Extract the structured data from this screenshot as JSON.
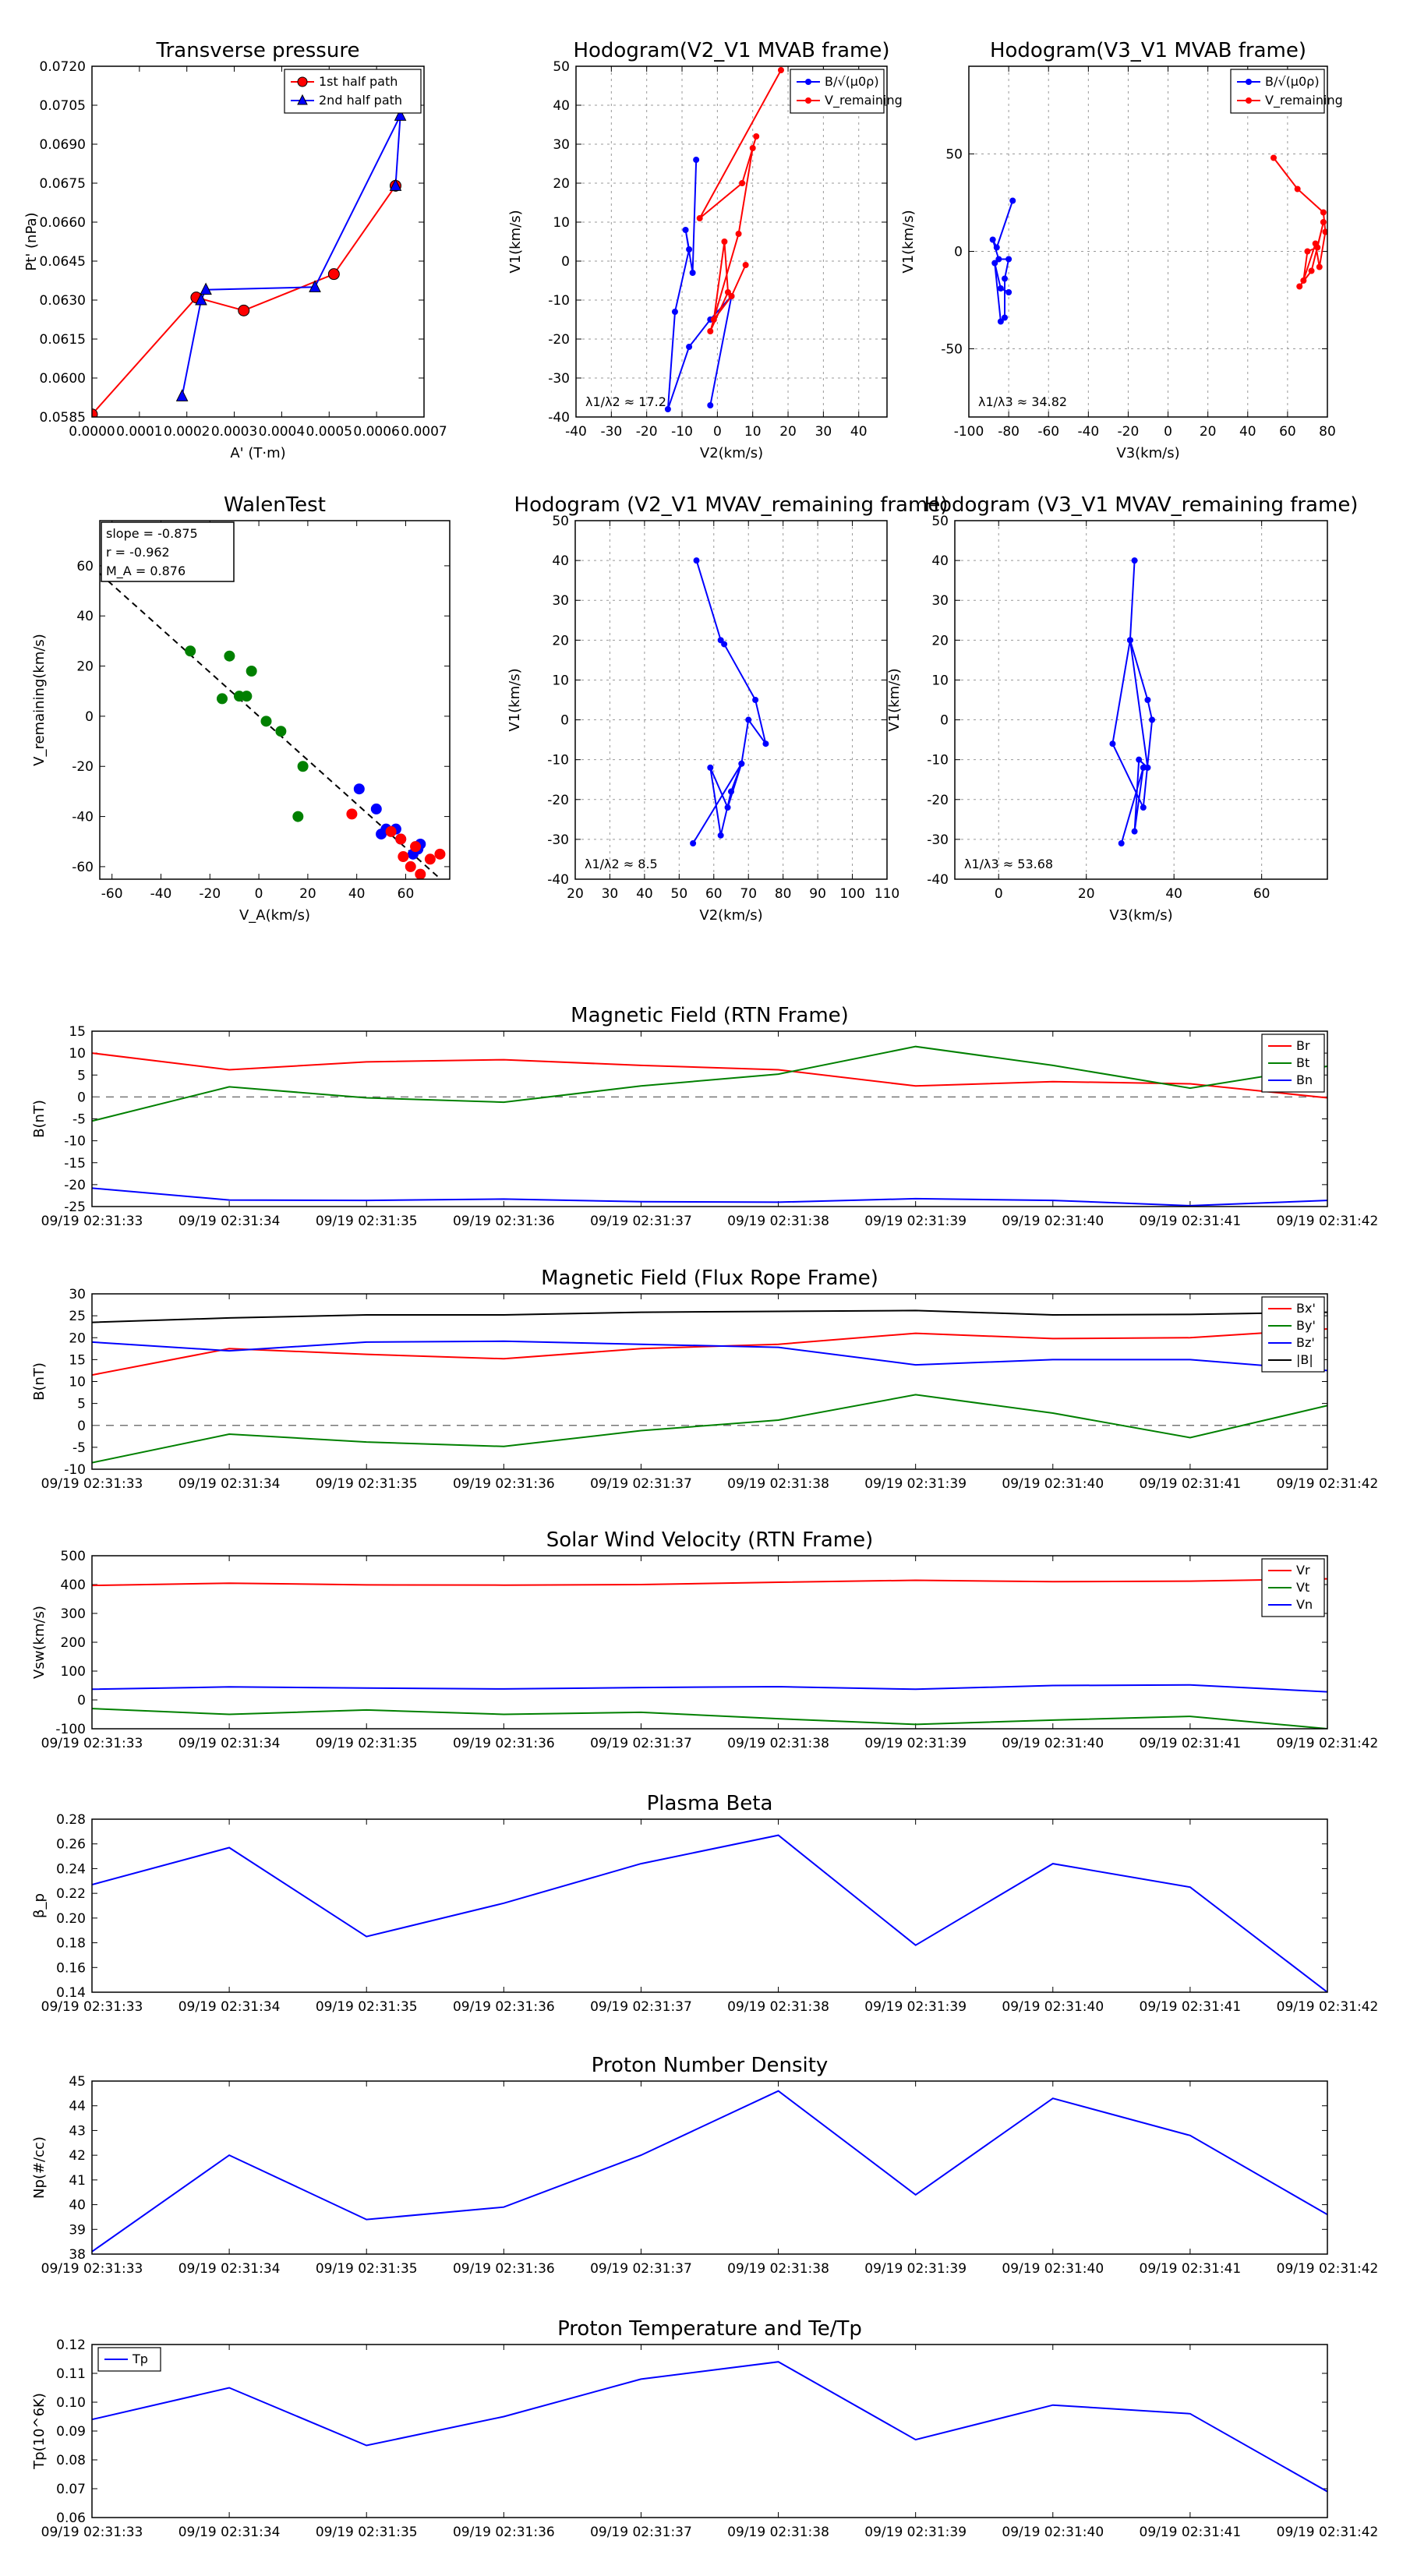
{
  "chart_data": [
    {
      "id": "tp",
      "type": "line",
      "title": "Transverse pressure",
      "xlabel": "A' (T·m)",
      "ylabel": "Pt' (nPa)",
      "xlim": [
        0,
        0.0007
      ],
      "ylim": [
        0.0585,
        0.072
      ],
      "xticks": [
        0,
        0.0001,
        0.0002,
        0.0003,
        0.0004,
        0.0005,
        0.0006,
        0.0007
      ],
      "xtick_labels": [
        "0.0000",
        "0.0001",
        "0.0002",
        "0.0003",
        "0.0004",
        "0.0005",
        "0.0006",
        "0.0007"
      ],
      "yticks": [
        0.0585,
        0.06,
        0.0615,
        0.063,
        0.0645,
        0.066,
        0.0675,
        0.069,
        0.0705,
        0.072
      ],
      "ytick_labels": [
        "0.0585",
        "0.0600",
        "0.0615",
        "0.0630",
        "0.0645",
        "0.0660",
        "0.0675",
        "0.0690",
        "0.0705",
        "0.0720"
      ],
      "legend": {
        "position": "top-right",
        "entries": [
          "1st half path",
          "2nd half path"
        ]
      },
      "series": [
        {
          "name": "1st half path",
          "color": "#ff0000",
          "marker": "circle",
          "x": [
            0.0,
            0.00022,
            0.00032,
            0.00051,
            0.00064
          ],
          "y": [
            0.0586,
            0.0631,
            0.0626,
            0.064,
            0.0674
          ]
        },
        {
          "name": "2nd half path",
          "color": "#0000ff",
          "marker": "triangle",
          "x": [
            0.00019,
            0.00023,
            0.00024,
            0.00047,
            0.00065,
            0.00064
          ],
          "y": [
            0.0593,
            0.063,
            0.0634,
            0.0635,
            0.0701,
            0.0674
          ]
        }
      ]
    },
    {
      "id": "h1",
      "type": "line",
      "title": "Hodogram(V2_V1 MVAB frame)",
      "xlabel": "V2(km/s)",
      "ylabel": "V1(km/s)",
      "xlim": [
        -40,
        48
      ],
      "ylim": [
        -40,
        50
      ],
      "xticks": [
        -40,
        -30,
        -20,
        -10,
        0,
        10,
        20,
        30,
        40
      ],
      "yticks": [
        -40,
        -30,
        -20,
        -10,
        0,
        10,
        20,
        30,
        40,
        50
      ],
      "annotation": "λ1/λ2 ≈ 17.2",
      "legend": {
        "position": "top-right",
        "entries": [
          "B/√(μ0ρ)",
          "V_remaining"
        ]
      },
      "series": [
        {
          "name": "B/√(μ0ρ)",
          "color": "#0000ff",
          "x": [
            -6,
            -7,
            -9,
            -8,
            -12,
            -14,
            -8,
            -2,
            4,
            -2
          ],
          "y": [
            26,
            -3,
            8,
            3,
            -13,
            -38,
            -22,
            -15,
            -9,
            -37
          ]
        },
        {
          "name": "V_remaining",
          "color": "#ff0000",
          "x": [
            18,
            -5,
            7,
            11,
            10,
            6,
            -2,
            3,
            2,
            -1,
            4,
            8
          ],
          "y": [
            49,
            11,
            20,
            32,
            29,
            7,
            -18,
            -8,
            5,
            -15,
            -9,
            -1
          ]
        }
      ]
    },
    {
      "id": "h2",
      "type": "line",
      "title": "Hodogram(V3_V1 MVAB frame)",
      "xlabel": "V3(km/s)",
      "ylabel": "V1(km/s)",
      "xlim": [
        -100,
        80
      ],
      "ylim": [
        -85,
        95
      ],
      "xticks": [
        -100,
        -80,
        -60,
        -40,
        -20,
        0,
        20,
        40,
        60,
        80
      ],
      "yticks": [
        -50,
        0,
        50
      ],
      "annotation": "λ1/λ3 ≈ 34.82",
      "legend": {
        "position": "top-right",
        "entries": [
          "B/√(μ0ρ)",
          "V_remaining"
        ]
      },
      "series": [
        {
          "name": "B/√(μ0ρ)",
          "color": "#0000ff",
          "x": [
            -78,
            -86,
            -88,
            -85,
            -80,
            -82,
            -82,
            -84,
            -87,
            -84,
            -80
          ],
          "y": [
            26,
            2,
            6,
            -4,
            -4,
            -14,
            -34,
            -36,
            -6,
            -19,
            -21
          ]
        },
        {
          "name": "V_remaining",
          "color": "#ff0000",
          "x": [
            53,
            65,
            78,
            79,
            76,
            74,
            68,
            70,
            75,
            78,
            72,
            66
          ],
          "y": [
            48,
            32,
            20,
            10,
            -8,
            4,
            -15,
            0,
            2,
            15,
            -10,
            -18
          ]
        }
      ]
    },
    {
      "id": "walen",
      "type": "scatter",
      "title": "WalenTest",
      "xlabel": "V_A(km/s)",
      "ylabel": "V_remaining(km/s)",
      "xlim": [
        -65,
        78
      ],
      "ylim": [
        -65,
        78
      ],
      "xticks": [
        -60,
        -40,
        -20,
        0,
        20,
        40,
        60
      ],
      "yticks": [
        -60,
        -40,
        -20,
        0,
        20,
        40,
        60
      ],
      "annotations": [
        "slope = -0.875",
        "r = -0.962",
        "M_A = 0.876"
      ],
      "fit_line": {
        "slope": -0.875,
        "intercept": 0,
        "color": "#000000",
        "style": "dashed"
      },
      "series": [
        {
          "name": "green",
          "color": "#008000",
          "x": [
            -28,
            -15,
            -12,
            -8,
            -5,
            -3,
            3,
            9,
            18,
            16
          ],
          "y": [
            26,
            7,
            24,
            8,
            8,
            18,
            -2,
            -6,
            -20,
            -40
          ]
        },
        {
          "name": "blue",
          "color": "#0000ff",
          "x": [
            41,
            48,
            50,
            52,
            56,
            58,
            63,
            65,
            66
          ],
          "y": [
            -29,
            -37,
            -47,
            -45,
            -45,
            -49,
            -55,
            -53,
            -51
          ]
        },
        {
          "name": "red",
          "color": "#ff0000",
          "x": [
            38,
            54,
            58,
            59,
            62,
            64,
            66,
            70,
            74
          ],
          "y": [
            -39,
            -46,
            -49,
            -56,
            -60,
            -52,
            -63,
            -57,
            -55
          ]
        }
      ]
    },
    {
      "id": "h3",
      "type": "line",
      "title": "Hodogram (V2_V1 MVAV_remaining frame)",
      "xlabel": "V2(km/s)",
      "ylabel": "V1(km/s)",
      "xlim": [
        20,
        110
      ],
      "ylim": [
        -40,
        50
      ],
      "xticks": [
        20,
        30,
        40,
        50,
        60,
        70,
        80,
        90,
        100,
        110
      ],
      "yticks": [
        -40,
        -30,
        -20,
        -10,
        0,
        10,
        20,
        30,
        40,
        50
      ],
      "annotation": "λ1/λ2 ≈ 8.5",
      "series": [
        {
          "name": "V",
          "color": "#0000ff",
          "x": [
            55,
            62,
            63,
            72,
            75,
            70,
            68,
            64,
            59,
            62,
            65,
            68,
            54
          ],
          "y": [
            40,
            20,
            19,
            5,
            -6,
            0,
            -11,
            -22,
            -12,
            -29,
            -18,
            -11,
            -31
          ]
        }
      ]
    },
    {
      "id": "h4",
      "type": "line",
      "title": "Hodogram (V3_V1 MVAV_remaining frame)",
      "xlabel": "V3(km/s)",
      "ylabel": "V1(km/s)",
      "xlim": [
        -10,
        75
      ],
      "ylim": [
        -40,
        50
      ],
      "xticks": [
        0,
        20,
        40,
        60
      ],
      "yticks": [
        -40,
        -30,
        -20,
        -10,
        0,
        10,
        20,
        30,
        40,
        50
      ],
      "annotation": "λ1/λ3 ≈ 53.68",
      "series": [
        {
          "name": "V",
          "color": "#0000ff",
          "x": [
            31,
            30,
            34,
            35,
            33,
            26,
            30,
            34,
            32,
            31,
            33,
            28
          ],
          "y": [
            40,
            20,
            5,
            0,
            -22,
            -6,
            20,
            -12,
            -10,
            -28,
            -12,
            -31
          ]
        }
      ]
    },
    {
      "id": "mag_rtn",
      "type": "line",
      "title": "Magnetic Field (RTN Frame)",
      "ylabel": "B(nT)",
      "ylim": [
        -25,
        15
      ],
      "yticks": [
        -25,
        -20,
        -15,
        -10,
        -5,
        0,
        5,
        10,
        15
      ],
      "zero_line": true,
      "legend": {
        "position": "top-right"
      },
      "categories": [
        "09/19 02:31:33",
        "09/19 02:31:34",
        "09/19 02:31:35",
        "09/19 02:31:36",
        "09/19 02:31:37",
        "09/19 02:31:38",
        "09/19 02:31:39",
        "09/19 02:31:40",
        "09/19 02:31:41",
        "09/19 02:31:42"
      ],
      "series": [
        {
          "name": "Br",
          "color": "#ff0000",
          "values": [
            10,
            6.2,
            8,
            8.5,
            7.2,
            6.2,
            2.5,
            3.5,
            3,
            -0.2
          ]
        },
        {
          "name": "Bt",
          "color": "#008000",
          "values": [
            -5.5,
            2.3,
            -0.2,
            -1.2,
            2.5,
            5.2,
            11.5,
            7.2,
            2,
            7
          ]
        },
        {
          "name": "Bn",
          "color": "#0000ff",
          "values": [
            -20.8,
            -23.5,
            -23.6,
            -23.3,
            -23.9,
            -24,
            -23.2,
            -23.6,
            -24.8,
            -23.6
          ]
        }
      ]
    },
    {
      "id": "mag_fr",
      "type": "line",
      "title": "Magnetic Field (Flux Rope Frame)",
      "ylabel": "B(nT)",
      "ylim": [
        -10,
        30
      ],
      "yticks": [
        -10,
        -5,
        0,
        5,
        10,
        15,
        20,
        25,
        30
      ],
      "zero_line": true,
      "legend": {
        "position": "top-right"
      },
      "categories": [
        "09/19 02:31:33",
        "09/19 02:31:34",
        "09/19 02:31:35",
        "09/19 02:31:36",
        "09/19 02:31:37",
        "09/19 02:31:38",
        "09/19 02:31:39",
        "09/19 02:31:40",
        "09/19 02:31:41",
        "09/19 02:31:42"
      ],
      "series": [
        {
          "name": "Bx'",
          "color": "#ff0000",
          "values": [
            11.5,
            17.5,
            16.2,
            15.2,
            17.5,
            18.5,
            21,
            19.8,
            20,
            22
          ]
        },
        {
          "name": "By'",
          "color": "#008000",
          "values": [
            -8.5,
            -2,
            -3.8,
            -4.8,
            -1.2,
            1.2,
            7,
            2.8,
            -2.8,
            4.5
          ]
        },
        {
          "name": "Bz'",
          "color": "#0000ff",
          "values": [
            19,
            17,
            19,
            19.2,
            18.5,
            17.8,
            13.8,
            15,
            15,
            12.5
          ]
        },
        {
          "name": "|B|",
          "color": "#000000",
          "values": [
            23.5,
            24.5,
            25.2,
            25.2,
            25.8,
            26,
            26.2,
            25.2,
            25.3,
            25.8
          ]
        }
      ]
    },
    {
      "id": "vsw",
      "type": "line",
      "title": "Solar Wind Velocity (RTN Frame)",
      "ylabel": "Vsw(km/s)",
      "ylim": [
        -100,
        500
      ],
      "yticks": [
        -100,
        0,
        100,
        200,
        300,
        400,
        500
      ],
      "legend": {
        "position": "top-right"
      },
      "categories": [
        "09/19 02:31:33",
        "09/19 02:31:34",
        "09/19 02:31:35",
        "09/19 02:31:36",
        "09/19 02:31:37",
        "09/19 02:31:38",
        "09/19 02:31:39",
        "09/19 02:31:40",
        "09/19 02:31:41",
        "09/19 02:31:42"
      ],
      "series": [
        {
          "name": "Vr",
          "color": "#ff0000",
          "values": [
            397,
            405,
            399,
            398,
            400,
            408,
            415,
            410,
            412,
            420
          ]
        },
        {
          "name": "Vt",
          "color": "#008000",
          "values": [
            -30,
            -50,
            -35,
            -50,
            -43,
            -65,
            -85,
            -70,
            -57,
            -100
          ]
        },
        {
          "name": "Vn",
          "color": "#0000ff",
          "values": [
            37,
            45,
            41,
            38,
            43,
            46,
            37,
            50,
            52,
            28
          ]
        }
      ]
    },
    {
      "id": "beta",
      "type": "line",
      "title": "Plasma Beta",
      "ylabel": "β_p",
      "ylim": [
        0.14,
        0.28
      ],
      "yticks": [
        0.14,
        0.16,
        0.18,
        0.2,
        0.22,
        0.24,
        0.26,
        0.28
      ],
      "ytick_labels": [
        "0.14",
        "0.16",
        "0.18",
        "0.20",
        "0.22",
        "0.24",
        "0.26",
        "0.28"
      ],
      "categories": [
        "09/19 02:31:33",
        "09/19 02:31:34",
        "09/19 02:31:35",
        "09/19 02:31:36",
        "09/19 02:31:37",
        "09/19 02:31:38",
        "09/19 02:31:39",
        "09/19 02:31:40",
        "09/19 02:31:41",
        "09/19 02:31:42"
      ],
      "series": [
        {
          "name": "beta",
          "color": "#0000ff",
          "values": [
            0.227,
            0.257,
            0.185,
            0.212,
            0.244,
            0.267,
            0.178,
            0.244,
            0.225,
            0.14
          ]
        }
      ]
    },
    {
      "id": "np",
      "type": "line",
      "title": "Proton Number Density",
      "ylabel": "Np(#/cc)",
      "ylim": [
        38,
        45
      ],
      "yticks": [
        38,
        39,
        40,
        41,
        42,
        43,
        44,
        45
      ],
      "categories": [
        "09/19 02:31:33",
        "09/19 02:31:34",
        "09/19 02:31:35",
        "09/19 02:31:36",
        "09/19 02:31:37",
        "09/19 02:31:38",
        "09/19 02:31:39",
        "09/19 02:31:40",
        "09/19 02:31:41",
        "09/19 02:31:42"
      ],
      "series": [
        {
          "name": "Np",
          "color": "#0000ff",
          "values": [
            38.1,
            42,
            39.4,
            39.9,
            42,
            44.6,
            40.4,
            44.3,
            42.8,
            39.6
          ]
        }
      ]
    },
    {
      "id": "tp_temp",
      "type": "line",
      "title": "Proton Temperature and Te/Tp",
      "ylabel": "Tp(10^6K)",
      "ylim": [
        0.06,
        0.12
      ],
      "yticks": [
        0.06,
        0.07,
        0.08,
        0.09,
        0.1,
        0.11,
        0.12
      ],
      "ytick_labels": [
        "0.06",
        "0.07",
        "0.08",
        "0.09",
        "0.10",
        "0.11",
        "0.12"
      ],
      "legend": {
        "position": "top-left"
      },
      "categories": [
        "09/19 02:31:33",
        "09/19 02:31:34",
        "09/19 02:31:35",
        "09/19 02:31:36",
        "09/19 02:31:37",
        "09/19 02:31:38",
        "09/19 02:31:39",
        "09/19 02:31:40",
        "09/19 02:31:41",
        "09/19 02:31:42"
      ],
      "series": [
        {
          "name": "Tp",
          "color": "#0000ff",
          "values": [
            0.094,
            0.105,
            0.085,
            0.095,
            0.108,
            0.114,
            0.087,
            0.099,
            0.096,
            0.069
          ]
        }
      ]
    }
  ]
}
